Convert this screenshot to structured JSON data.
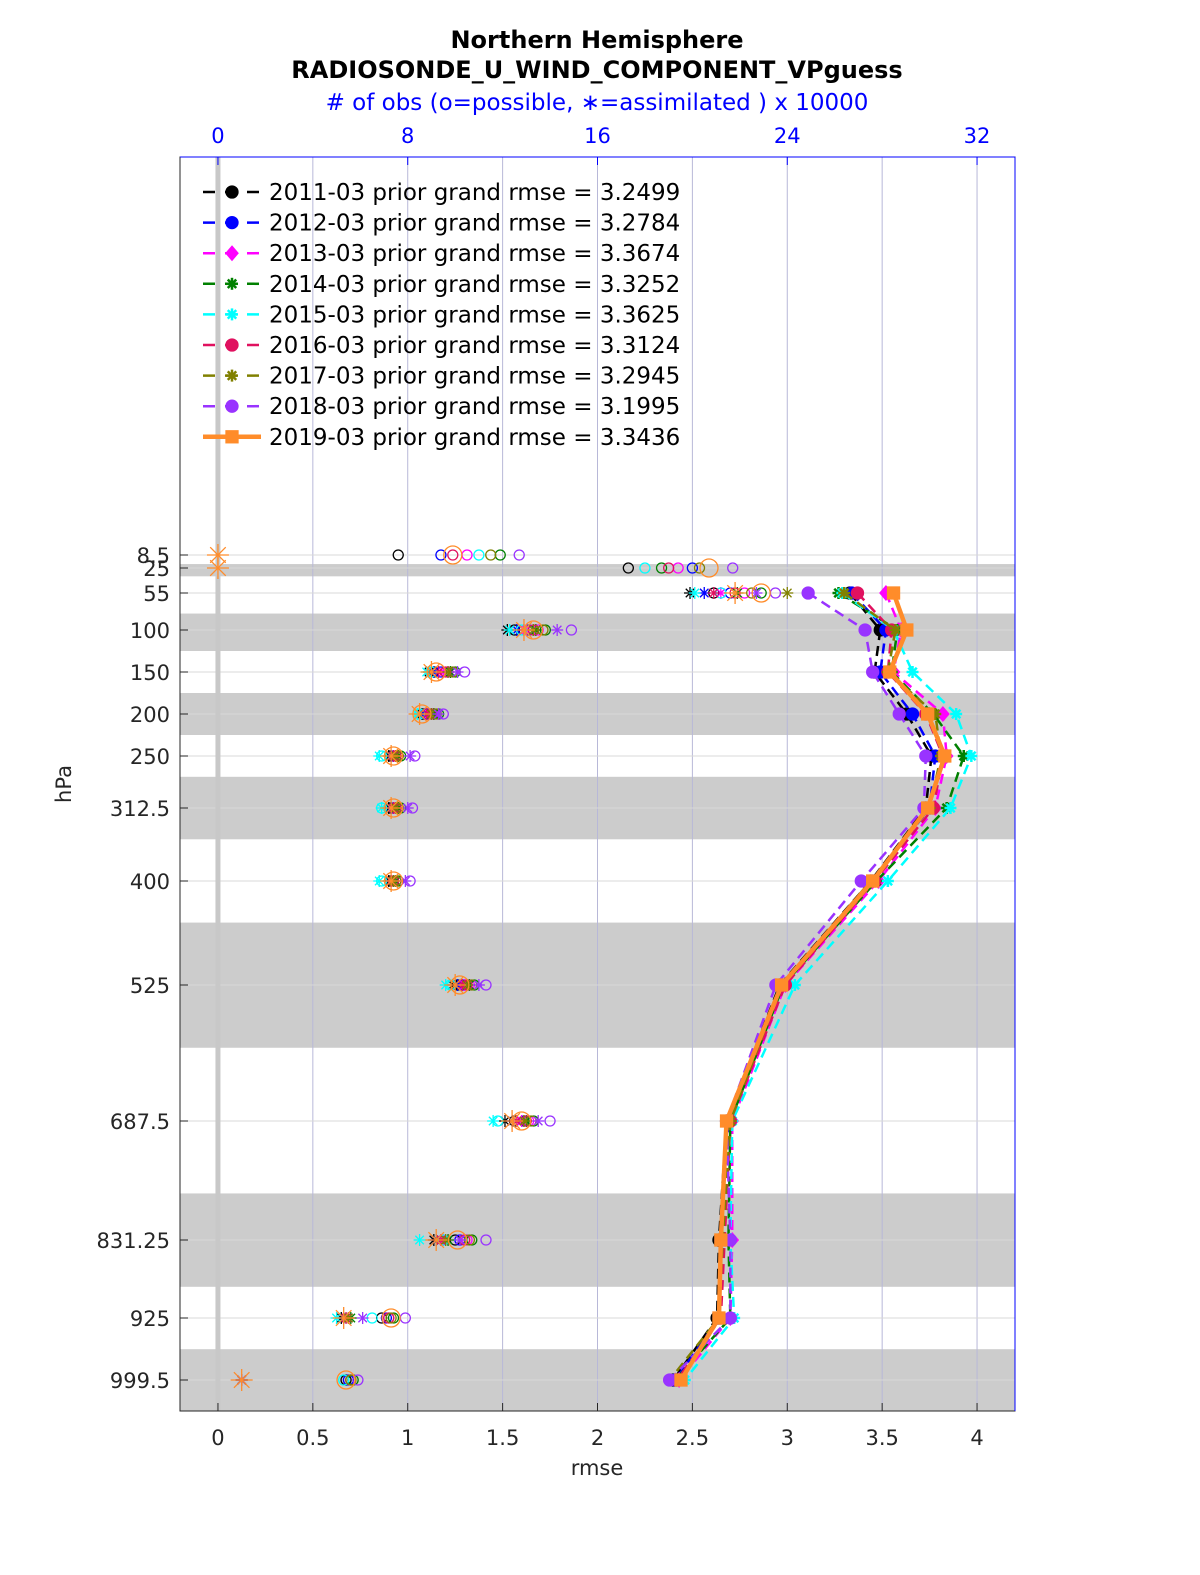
{
  "chart_data": {
    "type": "line",
    "title": "Northern Hemisphere",
    "subtitle": "RADIOSONDE_U_WIND_COMPONENT_VPguess",
    "top_axis_label": "# of obs (o=possible, ∗=assimilated ) x 10000",
    "xlabel": "rmse",
    "ylabel": "hPa",
    "xlim": [
      -0.2,
      4.2
    ],
    "x_ticks": [
      0,
      0.5,
      1,
      1.5,
      2,
      2.5,
      3,
      3.5,
      4
    ],
    "x_tick_labels": [
      "0",
      "0.5",
      "1",
      "1.5",
      "2",
      "2.5",
      "3",
      "3.5",
      "4"
    ],
    "top_xlim": [
      -1.6,
      33.6
    ],
    "top_ticks": [
      0,
      8,
      16,
      24,
      32
    ],
    "top_tick_labels": [
      "0",
      "8",
      "16",
      "24",
      "32"
    ],
    "levels": [
      8.5,
      25,
      55,
      100,
      150,
      200,
      250,
      312.5,
      400,
      525,
      687.5,
      831.25,
      925,
      999.5
    ],
    "level_labels": [
      "8.5",
      "25",
      "55",
      "100",
      "150",
      "200",
      "250",
      "312.5",
      "400",
      "525",
      "687.5",
      "831.25",
      "925",
      "999.5"
    ],
    "shaded_bands": [
      [
        20,
        35
      ],
      [
        80,
        125
      ],
      [
        175,
        225
      ],
      [
        275,
        350
      ],
      [
        450,
        600
      ],
      [
        775,
        887.5
      ],
      [
        962.5,
        1037.5
      ]
    ],
    "grid": true,
    "legend_position": "top-left",
    "series": [
      {
        "name": "2011-03 prior grand rmse = 3.2499",
        "color": "#000000",
        "marker": "circle",
        "style": "dashed",
        "rmse_levels": [
          55,
          100,
          150,
          200,
          250,
          312.5,
          400,
          525,
          687.5,
          831.25,
          925,
          999.5
        ],
        "rmse": [
          3.33,
          3.49,
          3.46,
          3.63,
          3.76,
          3.73,
          3.44,
          2.96,
          2.68,
          2.64,
          2.63,
          2.4
        ],
        "obs_levels": [
          8.5,
          25,
          55,
          100,
          150,
          200,
          250,
          312.5,
          400,
          525,
          687.5,
          831.25,
          925,
          999.5
        ],
        "possible": [
          7.6,
          17.3,
          20.9,
          12.5,
          9.1,
          8.7,
          7.3,
          7.3,
          7.3,
          10.1,
          12.5,
          10.0,
          6.9,
          5.4
        ],
        "assimilated": [
          null,
          null,
          19.9,
          12.2,
          8.9,
          8.6,
          7.2,
          7.2,
          7.2,
          9.9,
          12.1,
          9.1,
          5.2,
          1.0
        ]
      },
      {
        "name": "2012-03 prior grand rmse = 3.2784",
        "color": "#0000ff",
        "marker": "circle",
        "style": "dashed",
        "rmse_levels": [
          55,
          100,
          150,
          200,
          250,
          312.5,
          400,
          525,
          687.5,
          831.25,
          925,
          999.5
        ],
        "rmse": [
          3.34,
          3.52,
          3.49,
          3.66,
          3.78,
          3.75,
          3.45,
          2.97,
          2.69,
          2.65,
          2.64,
          2.41
        ],
        "obs_levels": [
          8.5,
          25,
          55,
          100,
          150,
          200,
          250,
          312.5,
          400,
          525,
          687.5,
          831.25,
          925,
          999.5
        ],
        "possible": [
          9.4,
          20.0,
          21.6,
          13.1,
          9.4,
          8.8,
          7.4,
          7.4,
          7.4,
          10.3,
          12.9,
          10.2,
          7.1,
          5.5
        ],
        "assimilated": [
          null,
          null,
          20.5,
          12.6,
          9.1,
          8.7,
          7.3,
          7.3,
          7.3,
          10.1,
          12.4,
          9.2,
          5.3,
          1.0
        ]
      },
      {
        "name": "2013-03 prior grand rmse = 3.3674",
        "color": "#ff00ff",
        "marker": "diamond",
        "style": "dashed",
        "rmse_levels": [
          55,
          100,
          150,
          200,
          250,
          312.5,
          400,
          525,
          687.5,
          831.25,
          925,
          999.5
        ],
        "rmse": [
          3.52,
          3.6,
          3.56,
          3.82,
          3.84,
          3.78,
          3.48,
          2.99,
          2.71,
          2.71,
          2.7,
          2.43
        ],
        "obs_levels": [
          8.5,
          25,
          55,
          100,
          150,
          200,
          250,
          312.5,
          400,
          525,
          687.5,
          831.25,
          925,
          999.5
        ],
        "possible": [
          10.5,
          19.4,
          22.2,
          13.5,
          9.7,
          9.1,
          7.6,
          7.6,
          7.5,
          10.6,
          13.1,
          10.5,
          7.2,
          5.6
        ],
        "assimilated": [
          null,
          null,
          21.2,
          13.0,
          9.5,
          8.9,
          7.5,
          7.5,
          7.4,
          10.4,
          12.8,
          9.5,
          5.5,
          1.0
        ]
      },
      {
        "name": "2014-03 prior grand rmse = 3.3252",
        "color": "#008000",
        "marker": "star",
        "style": "dashed",
        "rmse_levels": [
          55,
          100,
          150,
          200,
          250,
          312.5,
          400,
          525,
          687.5,
          831.25,
          925,
          999.5
        ],
        "rmse": [
          3.27,
          3.58,
          3.55,
          3.77,
          3.93,
          3.84,
          3.47,
          2.98,
          2.7,
          2.69,
          2.7,
          2.41
        ],
        "obs_levels": [
          8.5,
          25,
          55,
          100,
          150,
          200,
          250,
          312.5,
          400,
          525,
          687.5,
          831.25,
          925,
          999.5
        ],
        "possible": [
          11.9,
          18.7,
          22.9,
          13.8,
          10.0,
          9.3,
          7.7,
          7.7,
          7.6,
          10.8,
          13.3,
          10.7,
          7.4,
          5.7
        ],
        "assimilated": [
          null,
          null,
          21.9,
          13.4,
          9.8,
          9.1,
          7.6,
          7.6,
          7.5,
          10.6,
          13.0,
          9.7,
          5.6,
          1.0
        ]
      },
      {
        "name": "2015-03 prior grand rmse = 3.3625",
        "color": "#00ffff",
        "marker": "star",
        "style": "dashed",
        "rmse_levels": [
          55,
          100,
          150,
          200,
          250,
          312.5,
          400,
          525,
          687.5,
          831.25,
          925,
          999.5
        ],
        "rmse": [
          3.29,
          3.56,
          3.66,
          3.89,
          3.97,
          3.86,
          3.53,
          3.04,
          2.71,
          2.7,
          2.72,
          2.46
        ],
        "obs_levels": [
          8.5,
          25,
          55,
          100,
          150,
          200,
          250,
          312.5,
          400,
          525,
          687.5,
          831.25,
          925,
          999.5
        ],
        "possible": [
          11.0,
          18.0,
          21.2,
          12.8,
          9.0,
          8.5,
          6.9,
          6.9,
          6.9,
          9.8,
          11.8,
          9.5,
          6.5,
          5.3
        ],
        "assimilated": [
          null,
          null,
          20.1,
          12.3,
          8.8,
          8.4,
          6.8,
          6.9,
          6.8,
          9.6,
          11.6,
          8.5,
          5.0,
          1.0
        ]
      },
      {
        "name": "2016-03 prior grand rmse = 3.3124",
        "color": "#e0115f",
        "marker": "circle",
        "style": "dashed",
        "rmse_levels": [
          55,
          100,
          150,
          200,
          250,
          312.5,
          400,
          525,
          687.5,
          831.25,
          925,
          999.5
        ],
        "rmse": [
          3.37,
          3.55,
          3.53,
          3.73,
          3.82,
          3.77,
          3.46,
          2.99,
          2.7,
          2.67,
          2.65,
          2.42
        ],
        "obs_levels": [
          8.5,
          25,
          55,
          100,
          150,
          200,
          250,
          312.5,
          400,
          525,
          687.5,
          831.25,
          925,
          999.5
        ],
        "possible": [
          9.9,
          19.0,
          21.8,
          13.3,
          9.6,
          9.0,
          7.5,
          7.5,
          7.4,
          10.5,
          13.0,
          10.4,
          7.2,
          5.6
        ],
        "assimilated": [
          null,
          null,
          20.9,
          12.9,
          9.3,
          8.8,
          7.4,
          7.4,
          7.3,
          10.3,
          12.6,
          9.4,
          5.4,
          1.0
        ]
      },
      {
        "name": "2017-03 prior grand rmse = 3.2945",
        "color": "#808000",
        "marker": "star",
        "style": "dashed",
        "rmse_levels": [
          55,
          100,
          150,
          200,
          250,
          312.5,
          400,
          525,
          687.5,
          831.25,
          925,
          999.5
        ],
        "rmse": [
          3.3,
          3.57,
          3.53,
          3.78,
          3.81,
          3.75,
          3.44,
          2.97,
          2.7,
          2.66,
          2.64,
          2.38
        ],
        "obs_levels": [
          8.5,
          25,
          55,
          100,
          150,
          200,
          250,
          312.5,
          400,
          525,
          687.5,
          831.25,
          925,
          999.5
        ],
        "possible": [
          11.5,
          20.3,
          22.5,
          13.7,
          9.9,
          9.2,
          7.6,
          7.6,
          7.5,
          10.7,
          13.2,
          10.6,
          7.3,
          5.6
        ],
        "assimilated": [
          null,
          null,
          24.0,
          13.3,
          9.7,
          9.0,
          7.5,
          7.5,
          7.4,
          10.5,
          12.9,
          9.6,
          5.5,
          1.0
        ]
      },
      {
        "name": "2018-03 prior grand rmse = 3.1995",
        "color": "#9933ff",
        "marker": "circle",
        "style": "dashed",
        "rmse_levels": [
          55,
          100,
          150,
          200,
          250,
          312.5,
          400,
          525,
          687.5,
          831.25,
          925,
          999.5
        ],
        "rmse": [
          3.11,
          3.41,
          3.45,
          3.59,
          3.73,
          3.72,
          3.39,
          2.94,
          2.68,
          2.7,
          2.7,
          2.38
        ],
        "obs_levels": [
          8.5,
          25,
          55,
          100,
          150,
          200,
          250,
          312.5,
          400,
          525,
          687.5,
          831.25,
          925,
          999.5
        ],
        "possible": [
          12.7,
          21.7,
          23.5,
          14.9,
          10.4,
          9.5,
          8.3,
          8.2,
          8.1,
          11.3,
          14.0,
          11.3,
          7.9,
          5.9
        ],
        "assimilated": [
          null,
          null,
          22.7,
          14.3,
          10.1,
          9.3,
          8.1,
          8.0,
          7.9,
          11.0,
          13.5,
          10.2,
          6.1,
          1.0
        ]
      },
      {
        "name": "2019-03 prior grand rmse = 3.3436",
        "color": "#ff8c2a",
        "marker": "square",
        "style": "solid",
        "rmse_levels": [
          55,
          100,
          150,
          200,
          250,
          312.5,
          400,
          525,
          687.5,
          831.25,
          925,
          999.5
        ],
        "rmse": [
          3.56,
          3.63,
          3.54,
          3.74,
          3.83,
          3.74,
          3.45,
          2.97,
          2.68,
          2.65,
          2.64,
          2.44
        ],
        "obs_levels": [
          8.5,
          25,
          55,
          100,
          150,
          200,
          250,
          312.5,
          400,
          525,
          687.5,
          831.25,
          925,
          999.5
        ],
        "possible": [
          9.9,
          20.7,
          22.9,
          13.3,
          9.2,
          8.6,
          7.4,
          7.4,
          7.4,
          10.2,
          12.8,
          10.1,
          7.3,
          5.4
        ],
        "assimilated": [
          0,
          0,
          21.8,
          12.9,
          9.0,
          8.5,
          7.3,
          7.3,
          7.3,
          10.0,
          12.4,
          9.2,
          5.3,
          1.0
        ]
      }
    ]
  }
}
